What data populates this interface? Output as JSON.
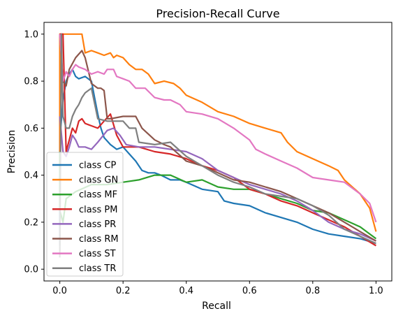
{
  "chart_data": {
    "type": "line",
    "title": "Precision-Recall Curve",
    "xlabel": "Recall",
    "ylabel": "Precision",
    "xlim": [
      -0.05,
      1.05
    ],
    "ylim": [
      -0.05,
      1.05
    ],
    "xticks": [
      0.0,
      0.2,
      0.4,
      0.6,
      0.8,
      1.0
    ],
    "xtick_labels": [
      "0.0",
      "0.2",
      "0.4",
      "0.6",
      "0.8",
      "1.0"
    ],
    "yticks": [
      0.0,
      0.2,
      0.4,
      0.6,
      0.8,
      1.0
    ],
    "ytick_labels": [
      "0.0",
      "0.2",
      "0.4",
      "0.6",
      "0.8",
      "1.0"
    ],
    "grid": false,
    "legend_position": "lower-left",
    "series": [
      {
        "name": "class CP",
        "color": "#1f77b4",
        "x": [
          0.0,
          0.0,
          0.01,
          0.02,
          0.03,
          0.04,
          0.05,
          0.06,
          0.08,
          0.1,
          0.11,
          0.12,
          0.13,
          0.14,
          0.16,
          0.18,
          0.2,
          0.22,
          0.24,
          0.26,
          0.28,
          0.3,
          0.32,
          0.35,
          0.38,
          0.4,
          0.45,
          0.5,
          0.52,
          0.55,
          0.6,
          0.65,
          0.7,
          0.75,
          0.8,
          0.85,
          0.9,
          0.95,
          1.0
        ],
        "y": [
          0.1,
          0.55,
          0.72,
          0.8,
          0.83,
          0.85,
          0.82,
          0.81,
          0.82,
          0.8,
          0.73,
          0.66,
          0.6,
          0.56,
          0.53,
          0.51,
          0.52,
          0.49,
          0.46,
          0.42,
          0.41,
          0.41,
          0.4,
          0.38,
          0.38,
          0.37,
          0.34,
          0.33,
          0.29,
          0.28,
          0.27,
          0.24,
          0.22,
          0.2,
          0.17,
          0.15,
          0.14,
          0.13,
          0.11
        ]
      },
      {
        "name": "class GN",
        "color": "#ff7f0e",
        "x": [
          0.0,
          0.0,
          0.01,
          0.02,
          0.05,
          0.07,
          0.08,
          0.1,
          0.12,
          0.14,
          0.16,
          0.17,
          0.18,
          0.2,
          0.22,
          0.24,
          0.26,
          0.28,
          0.3,
          0.33,
          0.36,
          0.38,
          0.4,
          0.45,
          0.5,
          0.55,
          0.6,
          0.65,
          0.7,
          0.72,
          0.75,
          0.8,
          0.85,
          0.88,
          0.9,
          0.95,
          0.98,
          1.0
        ],
        "y": [
          0.5,
          1.0,
          1.0,
          1.0,
          1.0,
          1.0,
          0.92,
          0.93,
          0.92,
          0.91,
          0.92,
          0.9,
          0.91,
          0.9,
          0.87,
          0.85,
          0.85,
          0.83,
          0.79,
          0.8,
          0.79,
          0.77,
          0.74,
          0.71,
          0.67,
          0.65,
          0.62,
          0.6,
          0.58,
          0.54,
          0.5,
          0.47,
          0.44,
          0.42,
          0.38,
          0.32,
          0.26,
          0.16
        ]
      },
      {
        "name": "class MF",
        "color": "#2ca02c",
        "x": [
          0.0,
          0.0,
          0.01,
          0.02,
          0.05,
          0.1,
          0.15,
          0.2,
          0.25,
          0.3,
          0.35,
          0.4,
          0.45,
          0.5,
          0.55,
          0.6,
          0.65,
          0.7,
          0.75,
          0.8,
          0.85,
          0.9,
          0.95,
          1.0
        ],
        "y": [
          0.5,
          0.25,
          0.2,
          0.3,
          0.33,
          0.36,
          0.36,
          0.37,
          0.38,
          0.4,
          0.4,
          0.37,
          0.38,
          0.35,
          0.34,
          0.34,
          0.32,
          0.3,
          0.28,
          0.25,
          0.24,
          0.21,
          0.18,
          0.13
        ]
      },
      {
        "name": "class PM",
        "color": "#d62728",
        "x": [
          0.0,
          0.01,
          0.02,
          0.03,
          0.04,
          0.05,
          0.06,
          0.07,
          0.08,
          0.1,
          0.12,
          0.14,
          0.16,
          0.18,
          0.2,
          0.25,
          0.3,
          0.35,
          0.4,
          0.45,
          0.5,
          0.55,
          0.6,
          0.65,
          0.7,
          0.75,
          0.8,
          0.85,
          0.9,
          0.95,
          1.0
        ],
        "y": [
          1.0,
          1.0,
          0.5,
          0.55,
          0.6,
          0.58,
          0.63,
          0.64,
          0.62,
          0.61,
          0.6,
          0.63,
          0.66,
          0.57,
          0.52,
          0.52,
          0.5,
          0.49,
          0.47,
          0.44,
          0.42,
          0.39,
          0.34,
          0.32,
          0.29,
          0.27,
          0.24,
          0.21,
          0.18,
          0.14,
          0.1
        ]
      },
      {
        "name": "class PR",
        "color": "#9467bd",
        "x": [
          0.0,
          0.01,
          0.02,
          0.03,
          0.04,
          0.05,
          0.06,
          0.08,
          0.1,
          0.12,
          0.15,
          0.17,
          0.19,
          0.21,
          0.25,
          0.3,
          0.35,
          0.4,
          0.45,
          0.5,
          0.55,
          0.6,
          0.65,
          0.7,
          0.75,
          0.8,
          0.85,
          0.9,
          0.95,
          1.0
        ],
        "y": [
          0.65,
          0.5,
          0.48,
          0.52,
          0.57,
          0.55,
          0.52,
          0.52,
          0.51,
          0.54,
          0.59,
          0.6,
          0.57,
          0.53,
          0.52,
          0.52,
          0.51,
          0.5,
          0.47,
          0.42,
          0.39,
          0.36,
          0.34,
          0.32,
          0.29,
          0.25,
          0.2,
          0.17,
          0.15,
          0.12
        ]
      },
      {
        "name": "class RM",
        "color": "#8c564b",
        "x": [
          0.0,
          0.01,
          0.02,
          0.03,
          0.05,
          0.07,
          0.08,
          0.1,
          0.12,
          0.13,
          0.14,
          0.15,
          0.16,
          0.2,
          0.24,
          0.26,
          0.3,
          0.33,
          0.35,
          0.4,
          0.45,
          0.5,
          0.55,
          0.6,
          0.65,
          0.7,
          0.75,
          0.8,
          0.85,
          0.9,
          0.95,
          1.0
        ],
        "y": [
          1.0,
          0.8,
          0.78,
          0.85,
          0.9,
          0.93,
          0.9,
          0.79,
          0.77,
          0.77,
          0.76,
          0.64,
          0.64,
          0.65,
          0.65,
          0.6,
          0.55,
          0.53,
          0.52,
          0.46,
          0.44,
          0.41,
          0.38,
          0.37,
          0.35,
          0.33,
          0.3,
          0.27,
          0.24,
          0.2,
          0.16,
          0.12
        ]
      },
      {
        "name": "class ST",
        "color": "#e377c2",
        "x": [
          0.0,
          0.01,
          0.02,
          0.03,
          0.04,
          0.05,
          0.06,
          0.08,
          0.1,
          0.12,
          0.14,
          0.15,
          0.17,
          0.18,
          0.2,
          0.22,
          0.24,
          0.27,
          0.3,
          0.33,
          0.35,
          0.38,
          0.4,
          0.45,
          0.5,
          0.55,
          0.6,
          0.62,
          0.65,
          0.7,
          0.75,
          0.8,
          0.85,
          0.9,
          0.95,
          0.98,
          1.0
        ],
        "y": [
          1.0,
          0.8,
          0.84,
          0.82,
          0.85,
          0.87,
          0.86,
          0.85,
          0.83,
          0.84,
          0.83,
          0.85,
          0.85,
          0.82,
          0.81,
          0.8,
          0.77,
          0.77,
          0.73,
          0.72,
          0.72,
          0.7,
          0.67,
          0.66,
          0.64,
          0.6,
          0.55,
          0.51,
          0.49,
          0.46,
          0.43,
          0.39,
          0.38,
          0.37,
          0.32,
          0.28,
          0.2
        ]
      },
      {
        "name": "class TR",
        "color": "#7f7f7f",
        "x": [
          0.0,
          0.005,
          0.01,
          0.02,
          0.03,
          0.04,
          0.05,
          0.06,
          0.07,
          0.08,
          0.09,
          0.1,
          0.12,
          0.15,
          0.2,
          0.22,
          0.24,
          0.25,
          0.3,
          0.35,
          0.4,
          0.45,
          0.5,
          0.55,
          0.6,
          0.65,
          0.7,
          0.75,
          0.8,
          0.85,
          0.9,
          0.95,
          1.0
        ],
        "y": [
          0.05,
          1.0,
          0.65,
          0.6,
          0.6,
          0.65,
          0.68,
          0.7,
          0.73,
          0.75,
          0.76,
          0.77,
          0.64,
          0.63,
          0.63,
          0.6,
          0.6,
          0.54,
          0.53,
          0.54,
          0.48,
          0.44,
          0.4,
          0.37,
          0.35,
          0.32,
          0.31,
          0.3,
          0.27,
          0.23,
          0.17,
          0.14,
          0.11
        ]
      }
    ]
  }
}
